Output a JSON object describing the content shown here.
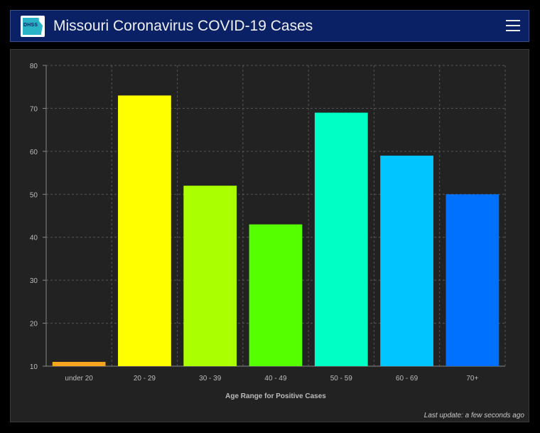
{
  "header": {
    "logo_text": "DHSS",
    "title": "Missouri Coronavirus COVID-19 Cases",
    "menu_icon": "hamburger-menu-icon"
  },
  "chart_data": {
    "type": "bar",
    "categories": [
      "under 20",
      "20 - 29",
      "30 - 39",
      "40 - 49",
      "50 - 59",
      "60 - 69",
      "70+"
    ],
    "values": [
      11,
      73,
      52,
      43,
      69,
      59,
      50
    ],
    "colors": [
      "#f7a51d",
      "#ffff00",
      "#aaff00",
      "#55ff00",
      "#00ffc5",
      "#00c5ff",
      "#0070ff"
    ],
    "title": "",
    "xlabel": "Age Range for Positive Cases",
    "ylabel": "",
    "ylim": [
      10,
      80
    ],
    "yticks": [
      10,
      20,
      30,
      40,
      50,
      60,
      70,
      80
    ],
    "grid": true,
    "legend": "none"
  },
  "footer": {
    "last_update": "Last update: a few seconds ago"
  }
}
